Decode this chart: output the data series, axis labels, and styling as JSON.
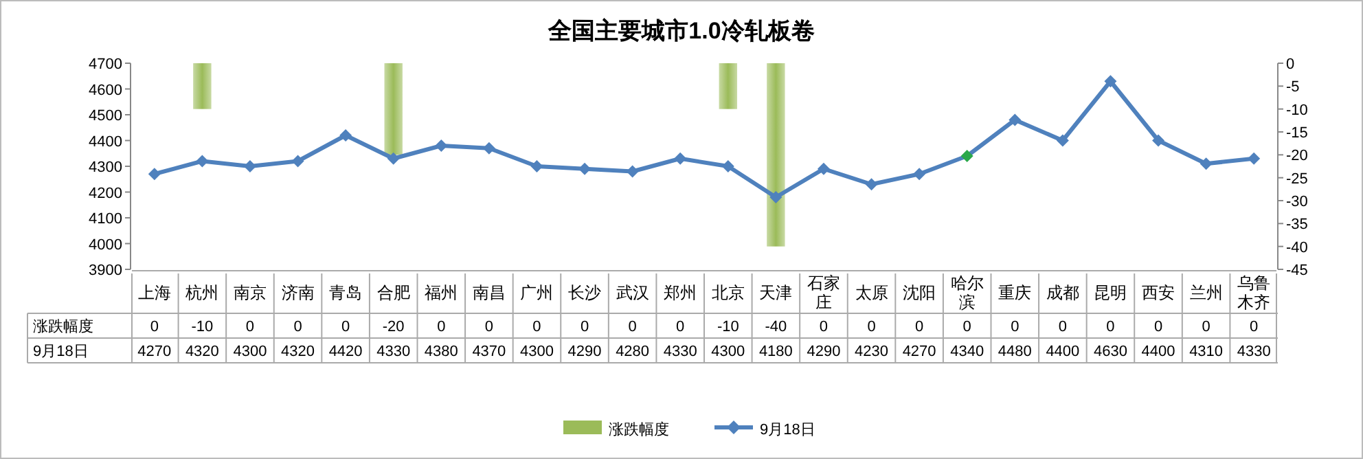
{
  "chart_data": {
    "type": "line",
    "title": "全国主要城市1.0冷轧板卷",
    "categories": [
      "上海",
      "杭州",
      "南京",
      "济南",
      "青岛",
      "合肥",
      "福州",
      "南昌",
      "广州",
      "长沙",
      "武汉",
      "郑州",
      "北京",
      "天津",
      "石家庄",
      "太原",
      "沈阳",
      "哈尔滨",
      "重庆",
      "成都",
      "昆明",
      "西安",
      "兰州",
      "乌鲁木齐"
    ],
    "series": [
      {
        "name": "涨跌幅度",
        "type": "bar",
        "axis": "y2",
        "color": "#9bbb59",
        "values": [
          0,
          -10,
          0,
          0,
          0,
          -20,
          0,
          0,
          0,
          0,
          0,
          0,
          -10,
          -40,
          0,
          0,
          0,
          0,
          0,
          0,
          0,
          0,
          0,
          0
        ]
      },
      {
        "name": "9月18日",
        "color": "#4f81bd",
        "colors": [
          "#4f81bd",
          "#4f81bd",
          "#4f81bd",
          "#4f81bd",
          "#4f81bd",
          "#4f81bd",
          "#4f81bd",
          "#4f81bd",
          "#4f81bd",
          "#4f81bd",
          "#4f81bd",
          "#4f81bd",
          "#4f81bd",
          "#4f81bd",
          "#4f81bd",
          "#4f81bd",
          "#4f81bd",
          "#2aa84a",
          "#4f81bd",
          "#4f81bd",
          "#4f81bd",
          "#4f81bd",
          "#4f81bd",
          "#4f81bd"
        ],
        "values": [
          4270,
          4320,
          4300,
          4320,
          4420,
          4330,
          4380,
          4370,
          4300,
          4290,
          4280,
          4330,
          4300,
          4180,
          4290,
          4230,
          4270,
          4340,
          4480,
          4400,
          4630,
          4400,
          4310,
          4330
        ]
      }
    ],
    "ylim": [
      3900,
      4700
    ],
    "yticks": [
      3900,
      4000,
      4100,
      4200,
      4300,
      4400,
      4500,
      4600,
      4700
    ],
    "y2lim": [
      -45,
      0
    ],
    "y2ticks": [
      0,
      -5,
      -10,
      -15,
      -20,
      -25,
      -30,
      -35,
      -40,
      -45
    ],
    "marker": "diamond",
    "line_style": "solid",
    "data_labels": true,
    "legend": "bottom",
    "grid": false
  }
}
